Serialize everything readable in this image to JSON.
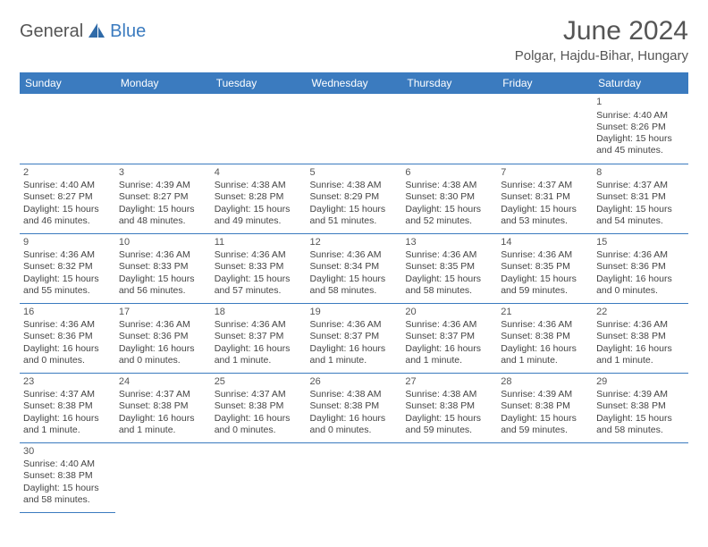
{
  "header": {
    "logo_text1": "General",
    "logo_text2": "Blue",
    "title": "June 2024",
    "location": "Polgar, Hajdu-Bihar, Hungary"
  },
  "colors": {
    "header_bg": "#3b7bbf",
    "header_fg": "#ffffff",
    "text": "#444444",
    "title": "#555555",
    "rule": "#3b7bbf"
  },
  "weekdays": [
    "Sunday",
    "Monday",
    "Tuesday",
    "Wednesday",
    "Thursday",
    "Friday",
    "Saturday"
  ],
  "grid": {
    "first_weekday_index": 6,
    "days": [
      {
        "n": 1,
        "sunrise": "4:40 AM",
        "sunset": "8:26 PM",
        "daylight": "15 hours and 45 minutes."
      },
      {
        "n": 2,
        "sunrise": "4:40 AM",
        "sunset": "8:27 PM",
        "daylight": "15 hours and 46 minutes."
      },
      {
        "n": 3,
        "sunrise": "4:39 AM",
        "sunset": "8:27 PM",
        "daylight": "15 hours and 48 minutes."
      },
      {
        "n": 4,
        "sunrise": "4:38 AM",
        "sunset": "8:28 PM",
        "daylight": "15 hours and 49 minutes."
      },
      {
        "n": 5,
        "sunrise": "4:38 AM",
        "sunset": "8:29 PM",
        "daylight": "15 hours and 51 minutes."
      },
      {
        "n": 6,
        "sunrise": "4:38 AM",
        "sunset": "8:30 PM",
        "daylight": "15 hours and 52 minutes."
      },
      {
        "n": 7,
        "sunrise": "4:37 AM",
        "sunset": "8:31 PM",
        "daylight": "15 hours and 53 minutes."
      },
      {
        "n": 8,
        "sunrise": "4:37 AM",
        "sunset": "8:31 PM",
        "daylight": "15 hours and 54 minutes."
      },
      {
        "n": 9,
        "sunrise": "4:36 AM",
        "sunset": "8:32 PM",
        "daylight": "15 hours and 55 minutes."
      },
      {
        "n": 10,
        "sunrise": "4:36 AM",
        "sunset": "8:33 PM",
        "daylight": "15 hours and 56 minutes."
      },
      {
        "n": 11,
        "sunrise": "4:36 AM",
        "sunset": "8:33 PM",
        "daylight": "15 hours and 57 minutes."
      },
      {
        "n": 12,
        "sunrise": "4:36 AM",
        "sunset": "8:34 PM",
        "daylight": "15 hours and 58 minutes."
      },
      {
        "n": 13,
        "sunrise": "4:36 AM",
        "sunset": "8:35 PM",
        "daylight": "15 hours and 58 minutes."
      },
      {
        "n": 14,
        "sunrise": "4:36 AM",
        "sunset": "8:35 PM",
        "daylight": "15 hours and 59 minutes."
      },
      {
        "n": 15,
        "sunrise": "4:36 AM",
        "sunset": "8:36 PM",
        "daylight": "16 hours and 0 minutes."
      },
      {
        "n": 16,
        "sunrise": "4:36 AM",
        "sunset": "8:36 PM",
        "daylight": "16 hours and 0 minutes."
      },
      {
        "n": 17,
        "sunrise": "4:36 AM",
        "sunset": "8:36 PM",
        "daylight": "16 hours and 0 minutes."
      },
      {
        "n": 18,
        "sunrise": "4:36 AM",
        "sunset": "8:37 PM",
        "daylight": "16 hours and 1 minute."
      },
      {
        "n": 19,
        "sunrise": "4:36 AM",
        "sunset": "8:37 PM",
        "daylight": "16 hours and 1 minute."
      },
      {
        "n": 20,
        "sunrise": "4:36 AM",
        "sunset": "8:37 PM",
        "daylight": "16 hours and 1 minute."
      },
      {
        "n": 21,
        "sunrise": "4:36 AM",
        "sunset": "8:38 PM",
        "daylight": "16 hours and 1 minute."
      },
      {
        "n": 22,
        "sunrise": "4:36 AM",
        "sunset": "8:38 PM",
        "daylight": "16 hours and 1 minute."
      },
      {
        "n": 23,
        "sunrise": "4:37 AM",
        "sunset": "8:38 PM",
        "daylight": "16 hours and 1 minute."
      },
      {
        "n": 24,
        "sunrise": "4:37 AM",
        "sunset": "8:38 PM",
        "daylight": "16 hours and 1 minute."
      },
      {
        "n": 25,
        "sunrise": "4:37 AM",
        "sunset": "8:38 PM",
        "daylight": "16 hours and 0 minutes."
      },
      {
        "n": 26,
        "sunrise": "4:38 AM",
        "sunset": "8:38 PM",
        "daylight": "16 hours and 0 minutes."
      },
      {
        "n": 27,
        "sunrise": "4:38 AM",
        "sunset": "8:38 PM",
        "daylight": "15 hours and 59 minutes."
      },
      {
        "n": 28,
        "sunrise": "4:39 AM",
        "sunset": "8:38 PM",
        "daylight": "15 hours and 59 minutes."
      },
      {
        "n": 29,
        "sunrise": "4:39 AM",
        "sunset": "8:38 PM",
        "daylight": "15 hours and 58 minutes."
      },
      {
        "n": 30,
        "sunrise": "4:40 AM",
        "sunset": "8:38 PM",
        "daylight": "15 hours and 58 minutes."
      }
    ]
  },
  "labels": {
    "sunrise": "Sunrise:",
    "sunset": "Sunset:",
    "daylight": "Daylight:"
  }
}
